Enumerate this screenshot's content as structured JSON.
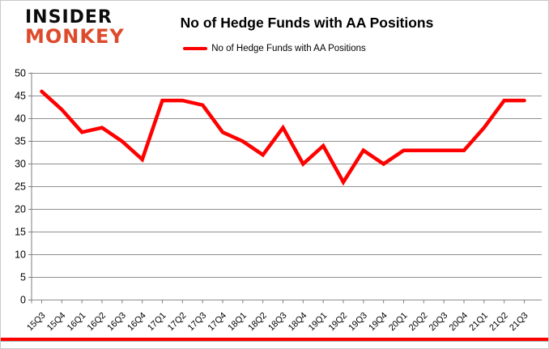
{
  "logo": {
    "line1": "INSIDER",
    "line2": "MONKEY"
  },
  "header": {
    "title": "No of Hedge Funds with AA Positions"
  },
  "legend": {
    "label": "No of Hedge Funds with AA Positions"
  },
  "chart_data": {
    "type": "line",
    "title": "No of Hedge Funds with AA Positions",
    "categories": [
      "15Q3",
      "15Q4",
      "16Q1",
      "16Q2",
      "16Q3",
      "16Q4",
      "17Q1",
      "17Q2",
      "17Q3",
      "17Q4",
      "18Q1",
      "18Q2",
      "18Q3",
      "18Q4",
      "19Q1",
      "19Q2",
      "19Q3",
      "19Q4",
      "20Q1",
      "20Q2",
      "20Q3",
      "20Q4",
      "21Q1",
      "21Q2",
      "21Q3"
    ],
    "series": [
      {
        "name": "No of Hedge Funds with AA Positions",
        "color": "#ff0000",
        "values": [
          46,
          42,
          37,
          38,
          35,
          31,
          44,
          44,
          43,
          37,
          35,
          32,
          38,
          30,
          34,
          26,
          33,
          30,
          33,
          33,
          33,
          33,
          38,
          44,
          44
        ]
      }
    ],
    "ylim": [
      0,
      50
    ],
    "ytick_step": 5,
    "grid": "horizontal",
    "legend_position": "top"
  },
  "colors": {
    "line_red": "#ff0000",
    "logo_red": "#dd4b2d",
    "grid": "#8f8f8f",
    "axis": "#7e7e7e",
    "frame_border": "#c9c9c9",
    "bottom_bar": "#ff0000"
  }
}
